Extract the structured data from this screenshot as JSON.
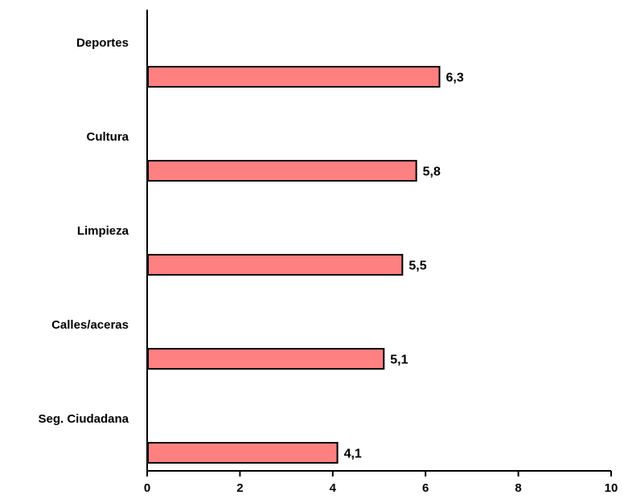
{
  "chart_data": {
    "type": "bar",
    "orientation": "horizontal",
    "categories": [
      "Deportes",
      "Cultura",
      "Limpieza",
      "Calles/aceras",
      "Seg. Ciudadana"
    ],
    "values": [
      6.3,
      5.8,
      5.5,
      5.1,
      4.1
    ],
    "value_labels": [
      "6,3",
      "5,8",
      "5,5",
      "5,1",
      "4,1"
    ],
    "x_ticks": [
      0,
      2,
      4,
      6,
      8,
      10
    ],
    "x_tick_labels": [
      "0",
      "2",
      "4",
      "6",
      "8",
      "10"
    ],
    "xlim": [
      0,
      10
    ],
    "grid": false,
    "legend": "none",
    "colors": {
      "bar_fill": "#ff8080",
      "bar_stroke": "#000000",
      "axis": "#000000"
    }
  }
}
